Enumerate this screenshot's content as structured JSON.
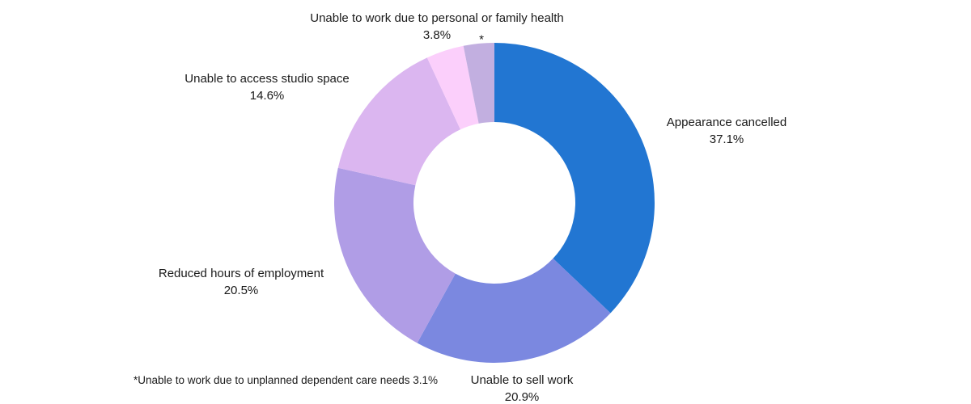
{
  "chart_data": {
    "type": "pie",
    "subtype": "donut",
    "title": "",
    "unit": "%",
    "total": 100.0,
    "start_angle_deg": 0,
    "direction": "clockwise",
    "inner_radius_ratio": 0.5,
    "legend": "none",
    "labels_position": "outside",
    "background": "#FFFFFF",
    "text_color": "#1A1A1A",
    "slices": [
      {
        "label": "Appearance cancelled",
        "value": 37.1,
        "pct_label": "37.1%",
        "color": "#2276D2"
      },
      {
        "label": "Unable to sell work",
        "value": 20.9,
        "pct_label": "20.9%",
        "color": "#7B88E0"
      },
      {
        "label": "Reduced hours of employment",
        "value": 20.5,
        "pct_label": "20.5%",
        "color": "#B09DE6"
      },
      {
        "label": "Unable to access studio space",
        "value": 14.6,
        "pct_label": "14.6%",
        "color": "#DBB6F0"
      },
      {
        "label": "Unable to work due to personal or family health",
        "value": 3.8,
        "pct_label": "3.8%",
        "color": "#FBCFFB"
      },
      {
        "label": "*",
        "value": 3.1,
        "pct_label": "",
        "color": "#C2AFE0"
      }
    ],
    "footnote": "*Unable to work due to unplanned dependent care needs 3.1%"
  }
}
